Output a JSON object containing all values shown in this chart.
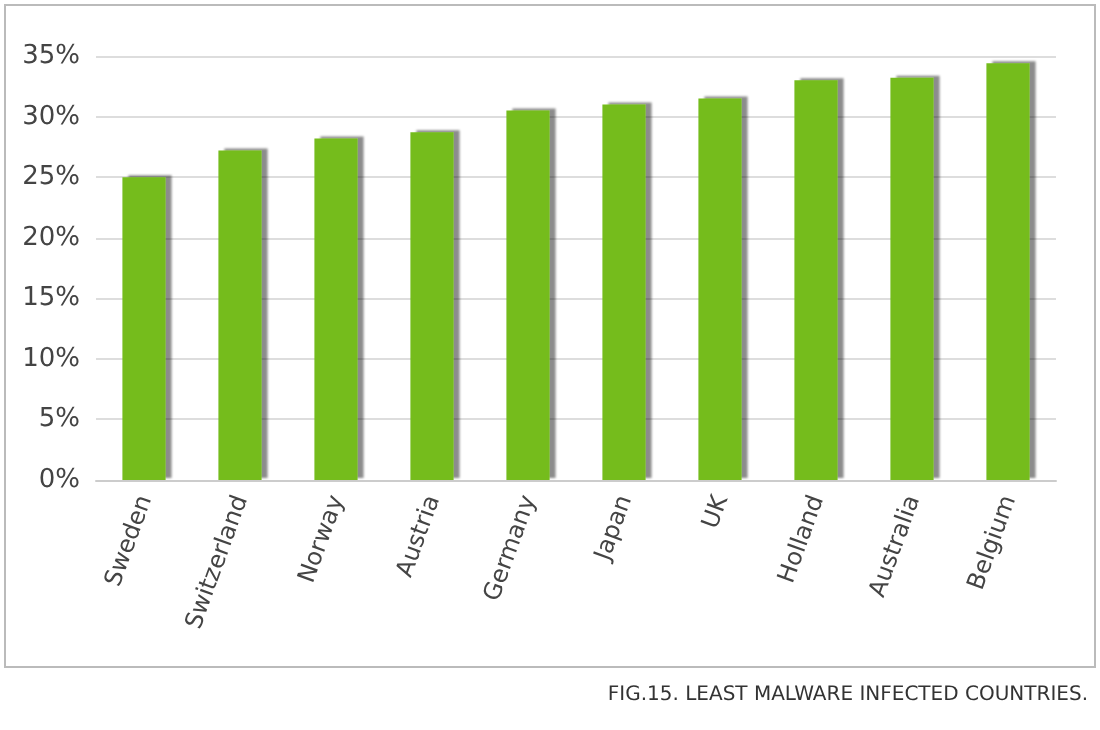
{
  "chart_data": {
    "type": "bar",
    "categories": [
      "Sweden",
      "Switzerland",
      "Norway",
      "Austria",
      "Germany",
      "Japan",
      "UK",
      "Holland",
      "Australia",
      "Belgium"
    ],
    "values": [
      25,
      27.2,
      28.2,
      28.7,
      30.5,
      31,
      31.5,
      33,
      33.2,
      34.4
    ],
    "color": "#74bc1c",
    "ylim": [
      0,
      35
    ],
    "yticks": [
      {
        "value": 0,
        "label": "0%"
      },
      {
        "value": 5,
        "label": "5%"
      },
      {
        "value": 10,
        "label": "10%"
      },
      {
        "value": 15,
        "label": "15%"
      },
      {
        "value": 20,
        "label": "20%"
      },
      {
        "value": 25,
        "label": "25%"
      },
      {
        "value": 30,
        "label": "30%"
      },
      {
        "value": 35,
        "label": "35%"
      }
    ],
    "grid": "y",
    "annotations": [
      "FIG.15. LEAST MALWARE INFECTED COUNTRIES."
    ]
  }
}
